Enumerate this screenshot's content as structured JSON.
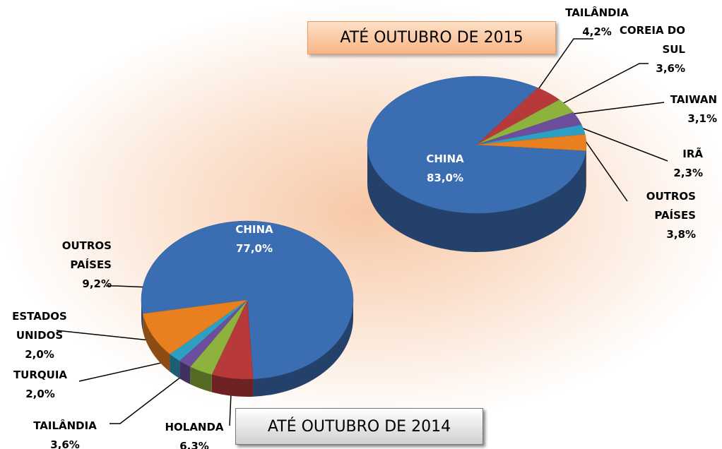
{
  "chart_data": [
    {
      "type": "pie3d",
      "title": "ATÉ OUTUBRO DE 2015",
      "categories": [
        "CHINA",
        "TAILÂNDIA",
        "COREIA DO SUL",
        "TAIWAN",
        "IRÃ",
        "OUTROS PAÍSES"
      ],
      "values": [
        83.0,
        4.2,
        3.6,
        3.1,
        2.3,
        3.8
      ],
      "value_labels": [
        "83,0%",
        "4,2%",
        "3,6%",
        "3,1%",
        "2,3%",
        "3,8%"
      ],
      "colors": [
        "#3b6db3",
        "#b8393a",
        "#8db33e",
        "#6c4e9c",
        "#2e9fc3",
        "#e8801f"
      ]
    },
    {
      "type": "pie3d",
      "title": "ATÉ OUTUBRO DE 2014",
      "categories": [
        "CHINA",
        "HOLANDA",
        "TAILÂNDIA",
        "TURQUIA",
        "ESTADOS UNIDOS",
        "OUTROS PAÍSES"
      ],
      "values": [
        77.0,
        6.3,
        3.6,
        2.0,
        2.0,
        9.2
      ],
      "value_labels": [
        "77,0%",
        "6,3%",
        "3,6%",
        "2,0%",
        "2,0%",
        "9,2%"
      ],
      "colors": [
        "#3b6db3",
        "#b8393a",
        "#8db33e",
        "#6c4e9c",
        "#2e9fc3",
        "#e8801f"
      ]
    }
  ]
}
